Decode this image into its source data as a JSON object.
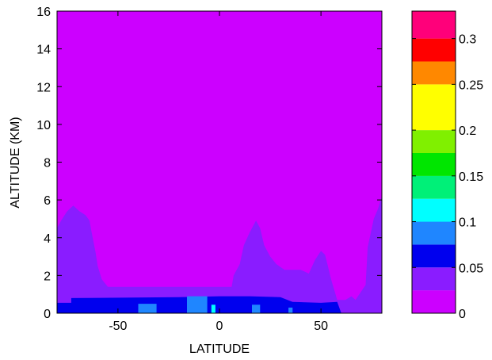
{
  "chart_data": {
    "type": "heatmap",
    "title": "",
    "xlabel": "LATITUDE",
    "ylabel": "ALTITUDE (KM)",
    "xlim": [
      -80,
      80
    ],
    "ylim": [
      0,
      16
    ],
    "x_ticks": [
      -50,
      0,
      50
    ],
    "y_ticks": [
      0,
      2,
      4,
      6,
      8,
      10,
      12,
      14,
      16
    ],
    "grid": false,
    "colorbar": {
      "placement": "right",
      "range": [
        0,
        0.33
      ],
      "levels": [
        {
          "from": 0.0,
          "to": 0.025,
          "color": "#cc00ff"
        },
        {
          "from": 0.025,
          "to": 0.05,
          "color": "#8a1cff"
        },
        {
          "from": 0.05,
          "to": 0.075,
          "color": "#0000ee"
        },
        {
          "from": 0.075,
          "to": 0.1,
          "color": "#1f86ff"
        },
        {
          "from": 0.1,
          "to": 0.125,
          "color": "#00ffff"
        },
        {
          "from": 0.125,
          "to": 0.15,
          "color": "#00f078"
        },
        {
          "from": 0.15,
          "to": 0.175,
          "color": "#00e600"
        },
        {
          "from": 0.175,
          "to": 0.2,
          "color": "#80f000"
        },
        {
          "from": 0.2,
          "to": 0.25,
          "color": "#ffff00"
        },
        {
          "from": 0.25,
          "to": 0.275,
          "color": "#ff8800"
        },
        {
          "from": 0.275,
          "to": 0.3,
          "color": "#ff0000"
        },
        {
          "from": 0.3,
          "to": 0.33,
          "color": "#ff007a"
        }
      ],
      "tick_values": [
        0,
        0.05,
        0.1,
        0.15,
        0.2,
        0.25,
        0.3
      ],
      "tick_labels": [
        "0",
        "0.05",
        "0.1",
        "0.15",
        "0.2",
        "0.25",
        "0.3"
      ]
    },
    "regions": [
      {
        "name": "background",
        "value": 0.0,
        "vertices": [
          [
            -80,
            0
          ],
          [
            80,
            0
          ],
          [
            80,
            16
          ],
          [
            -80,
            16
          ]
        ]
      },
      {
        "name": "southern-lobe",
        "value": 0.04,
        "vertices": [
          [
            -80,
            0
          ],
          [
            -80,
            4.5
          ],
          [
            -78,
            4.9
          ],
          [
            -75,
            5.4
          ],
          [
            -72,
            5.7
          ],
          [
            -69,
            5.4
          ],
          [
            -66,
            5.2
          ],
          [
            -64,
            4.9
          ],
          [
            -63,
            4.3
          ],
          [
            -61,
            3.2
          ],
          [
            -60,
            2.5
          ],
          [
            -58,
            1.8
          ],
          [
            -55,
            1.4
          ],
          [
            -40,
            1.4
          ],
          [
            -20,
            1.4
          ],
          [
            0,
            1.4
          ],
          [
            6,
            1.4
          ],
          [
            7,
            2.0
          ],
          [
            10,
            2.6
          ],
          [
            12,
            3.6
          ],
          [
            15,
            4.3
          ],
          [
            18,
            4.9
          ],
          [
            20,
            4.5
          ],
          [
            22,
            3.6
          ],
          [
            25,
            3.0
          ],
          [
            28,
            2.6
          ],
          [
            32,
            2.3
          ],
          [
            40,
            2.3
          ],
          [
            44,
            2.1
          ],
          [
            47,
            2.8
          ],
          [
            50,
            3.3
          ],
          [
            52,
            3.1
          ],
          [
            55,
            1.8
          ],
          [
            58,
            0.7
          ],
          [
            62,
            0.7
          ],
          [
            65,
            0.9
          ],
          [
            67,
            0.7
          ],
          [
            72,
            1.5
          ],
          [
            73,
            3.5
          ],
          [
            76,
            5.0
          ],
          [
            78,
            5.5
          ],
          [
            80,
            6.2
          ],
          [
            80,
            0
          ]
        ]
      },
      {
        "name": "dark-blue-band",
        "value": 0.06,
        "vertices": [
          [
            -80,
            0
          ],
          [
            -80,
            0.55
          ],
          [
            -73,
            0.55
          ],
          [
            -73,
            0.8
          ],
          [
            -20,
            0.85
          ],
          [
            0,
            0.9
          ],
          [
            15,
            0.9
          ],
          [
            30,
            0.85
          ],
          [
            36,
            0.6
          ],
          [
            50,
            0.55
          ],
          [
            58,
            0.6
          ],
          [
            60,
            0
          ],
          [
            -80,
            0
          ]
        ]
      },
      {
        "name": "blue-patch-south",
        "value": 0.09,
        "vertices": [
          [
            -40,
            0
          ],
          [
            -40,
            0.5
          ],
          [
            -31,
            0.5
          ],
          [
            -31,
            0
          ]
        ]
      },
      {
        "name": "blue-patch-equator",
        "value": 0.09,
        "vertices": [
          [
            -16,
            0
          ],
          [
            -16,
            0.9
          ],
          [
            -6,
            0.9
          ],
          [
            -6,
            0
          ]
        ]
      },
      {
        "name": "blue-patch-north",
        "value": 0.09,
        "vertices": [
          [
            16,
            0
          ],
          [
            16,
            0.45
          ],
          [
            20,
            0.45
          ],
          [
            20,
            0
          ]
        ]
      },
      {
        "name": "blue-patch-north-2",
        "value": 0.09,
        "vertices": [
          [
            34,
            0
          ],
          [
            34,
            0.3
          ],
          [
            36,
            0.3
          ],
          [
            36,
            0
          ]
        ]
      },
      {
        "name": "cyan-spot",
        "value": 0.11,
        "vertices": [
          [
            -4,
            0
          ],
          [
            -4,
            0.45
          ],
          [
            -2,
            0.45
          ],
          [
            -2,
            0
          ]
        ]
      }
    ]
  }
}
